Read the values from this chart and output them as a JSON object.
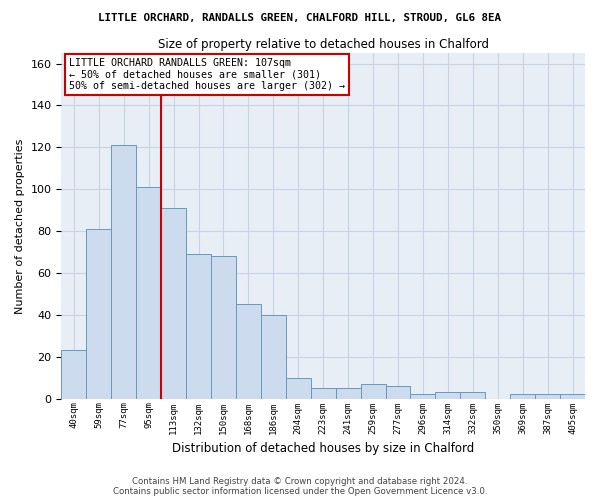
{
  "title": "LITTLE ORCHARD, RANDALLS GREEN, CHALFORD HILL, STROUD, GL6 8EA",
  "subtitle": "Size of property relative to detached houses in Chalford",
  "xlabel": "Distribution of detached houses by size in Chalford",
  "ylabel": "Number of detached properties",
  "categories": [
    "40sqm",
    "59sqm",
    "77sqm",
    "95sqm",
    "113sqm",
    "132sqm",
    "150sqm",
    "168sqm",
    "186sqm",
    "204sqm",
    "223sqm",
    "241sqm",
    "259sqm",
    "277sqm",
    "296sqm",
    "314sqm",
    "332sqm",
    "350sqm",
    "369sqm",
    "387sqm",
    "405sqm"
  ],
  "values": [
    23,
    81,
    121,
    101,
    91,
    69,
    68,
    45,
    40,
    10,
    5,
    5,
    7,
    6,
    2,
    3,
    3,
    0,
    2,
    2,
    2
  ],
  "bar_color": "#ccdcee",
  "bar_edge_color": "#6699bb",
  "grid_color": "#c8d4e4",
  "background_color": "#e8eef6",
  "vline_color": "#cc0000",
  "vline_x": 3.5,
  "annotation_text": "LITTLE ORCHARD RANDALLS GREEN: 107sqm\n← 50% of detached houses are smaller (301)\n50% of semi-detached houses are larger (302) →",
  "annotation_box_edge": "#cc0000",
  "ylim": [
    0,
    165
  ],
  "yticks": [
    0,
    20,
    40,
    60,
    80,
    100,
    120,
    140,
    160
  ],
  "footer_line1": "Contains HM Land Registry data © Crown copyright and database right 2024.",
  "footer_line2": "Contains public sector information licensed under the Open Government Licence v3.0."
}
